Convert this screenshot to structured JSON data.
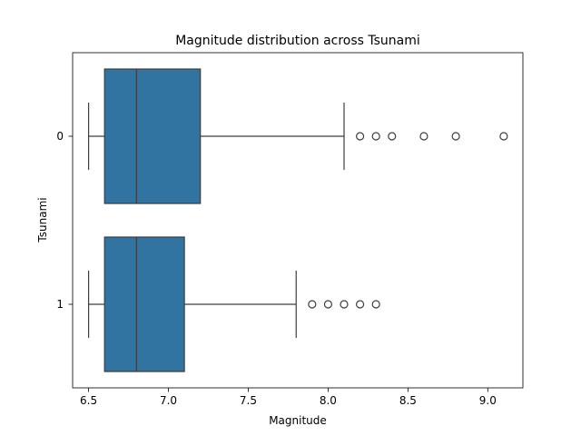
{
  "chart_data": {
    "type": "boxplot",
    "orientation": "horizontal",
    "title": "Magnitude distribution across Tsunami",
    "xlabel": "Magnitude",
    "ylabel": "Tsunami",
    "xlim": [
      6.4,
      9.22
    ],
    "x_ticks": [
      "6.5",
      "7.0",
      "7.5",
      "8.0",
      "8.5",
      "9.0"
    ],
    "categories": [
      "0",
      "1"
    ],
    "box_color": "#3274a1",
    "grid": false,
    "series": [
      {
        "category": "0",
        "whisker_low": 6.5,
        "q1": 6.6,
        "median": 6.8,
        "q3": 7.2,
        "whisker_high": 8.1,
        "outliers": [
          8.2,
          8.3,
          8.4,
          8.6,
          8.8,
          9.1
        ]
      },
      {
        "category": "1",
        "whisker_low": 6.5,
        "q1": 6.6,
        "median": 6.8,
        "q3": 7.1,
        "whisker_high": 7.8,
        "outliers": [
          7.9,
          8.0,
          8.1,
          8.2,
          8.3
        ]
      }
    ]
  }
}
